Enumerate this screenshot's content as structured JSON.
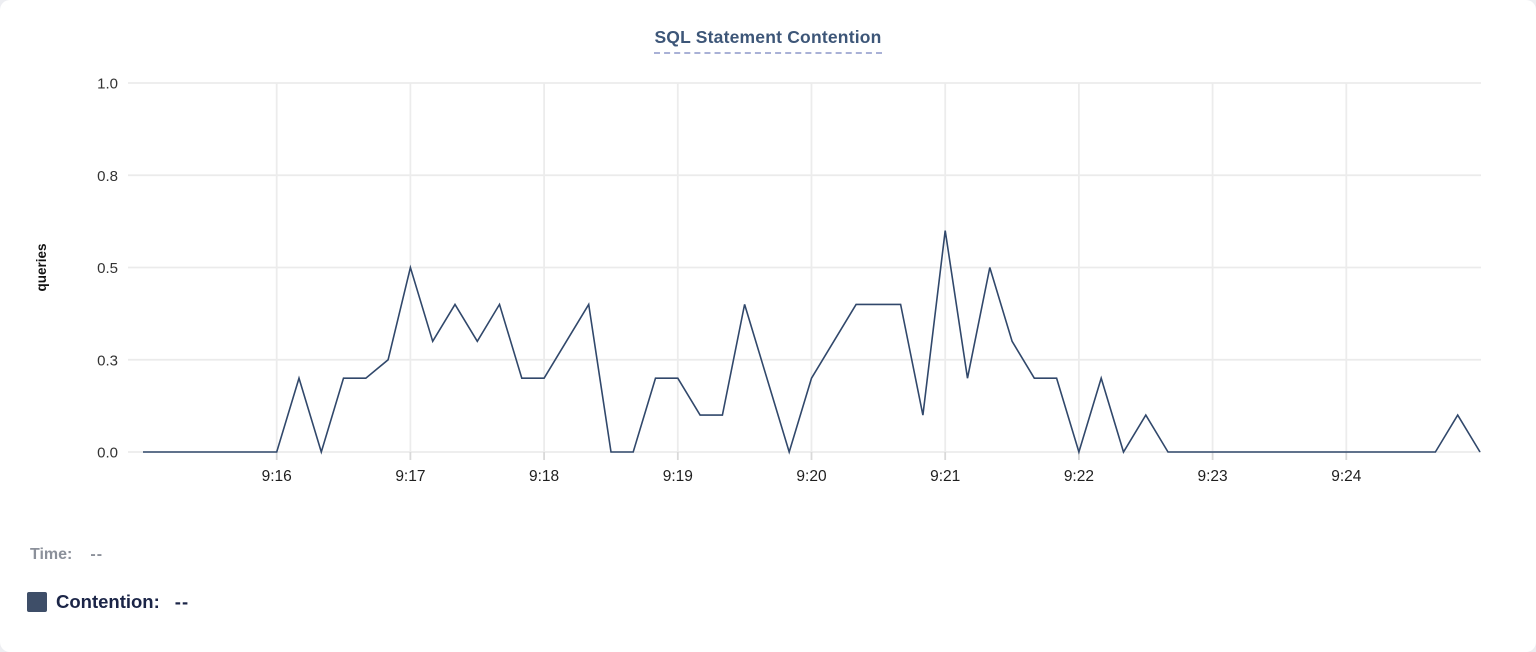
{
  "title": "SQL Statement Contention",
  "legend": {
    "time_label": "Time:",
    "time_value": "--",
    "contention_label": "Contention:",
    "contention_value": "--",
    "swatch_color": "#3e4e68"
  },
  "colors": {
    "line": "#31486b",
    "title": "#3d5678",
    "title_underline": "#a9b1d6",
    "grid": "#ebebeb",
    "tick": "#d9d9d9",
    "axis_text": "#1f1f1f",
    "y_axis_text": "#333333"
  },
  "chart_data": {
    "type": "line",
    "title": "SQL Statement Contention",
    "xlabel": "",
    "ylabel": "queries",
    "series_name": "Contention",
    "ylim": [
      0,
      1.0
    ],
    "grid": true,
    "y_ticks": [
      {
        "value": 0,
        "label": "0.0"
      },
      {
        "value": 0.25,
        "label": "0.3"
      },
      {
        "value": 0.5,
        "label": "0.5"
      },
      {
        "value": 0.75,
        "label": "0.8"
      },
      {
        "value": 1.0,
        "label": "1.0"
      }
    ],
    "x_ticks": [
      "9:16",
      "9:17",
      "9:18",
      "9:19",
      "9:20",
      "9:21",
      "9:22",
      "9:23",
      "9:24"
    ],
    "x_range": [
      "9:15:00",
      "9:25:00"
    ],
    "interval_seconds": 10,
    "points": [
      [
        "9:15:00",
        0
      ],
      [
        "9:15:10",
        0
      ],
      [
        "9:15:20",
        0
      ],
      [
        "9:15:30",
        0
      ],
      [
        "9:15:40",
        0
      ],
      [
        "9:15:50",
        0
      ],
      [
        "9:16:00",
        0
      ],
      [
        "9:16:10",
        0.2
      ],
      [
        "9:16:20",
        0
      ],
      [
        "9:16:30",
        0.2
      ],
      [
        "9:16:40",
        0.2
      ],
      [
        "9:16:50",
        0.25
      ],
      [
        "9:17:00",
        0.5
      ],
      [
        "9:17:10",
        0.3
      ],
      [
        "9:17:20",
        0.4
      ],
      [
        "9:17:30",
        0.3
      ],
      [
        "9:17:40",
        0.4
      ],
      [
        "9:17:50",
        0.2
      ],
      [
        "9:18:00",
        0.2
      ],
      [
        "9:18:10",
        0.3
      ],
      [
        "9:18:20",
        0.4
      ],
      [
        "9:18:30",
        0
      ],
      [
        "9:18:40",
        0
      ],
      [
        "9:18:50",
        0.2
      ],
      [
        "9:19:00",
        0.2
      ],
      [
        "9:19:10",
        0.1
      ],
      [
        "9:19:20",
        0.1
      ],
      [
        "9:19:30",
        0.4
      ],
      [
        "9:19:40",
        0.2
      ],
      [
        "9:19:50",
        0
      ],
      [
        "9:20:00",
        0.2
      ],
      [
        "9:20:10",
        0.3
      ],
      [
        "9:20:20",
        0.4
      ],
      [
        "9:20:30",
        0.4
      ],
      [
        "9:20:40",
        0.4
      ],
      [
        "9:20:50",
        0.1
      ],
      [
        "9:21:00",
        0.6
      ],
      [
        "9:21:10",
        0.2
      ],
      [
        "9:21:20",
        0.5
      ],
      [
        "9:21:30",
        0.3
      ],
      [
        "9:21:40",
        0.2
      ],
      [
        "9:21:50",
        0.2
      ],
      [
        "9:22:00",
        0
      ],
      [
        "9:22:10",
        0.2
      ],
      [
        "9:22:20",
        0
      ],
      [
        "9:22:30",
        0.1
      ],
      [
        "9:22:40",
        0
      ],
      [
        "9:22:50",
        0
      ],
      [
        "9:23:00",
        0
      ],
      [
        "9:23:10",
        0
      ],
      [
        "9:23:20",
        0
      ],
      [
        "9:23:30",
        0
      ],
      [
        "9:23:40",
        0
      ],
      [
        "9:23:50",
        0
      ],
      [
        "9:24:00",
        0
      ],
      [
        "9:24:10",
        0
      ],
      [
        "9:24:20",
        0
      ],
      [
        "9:24:30",
        0
      ],
      [
        "9:24:40",
        0
      ],
      [
        "9:24:50",
        0.1
      ],
      [
        "9:25:00",
        0
      ]
    ]
  }
}
